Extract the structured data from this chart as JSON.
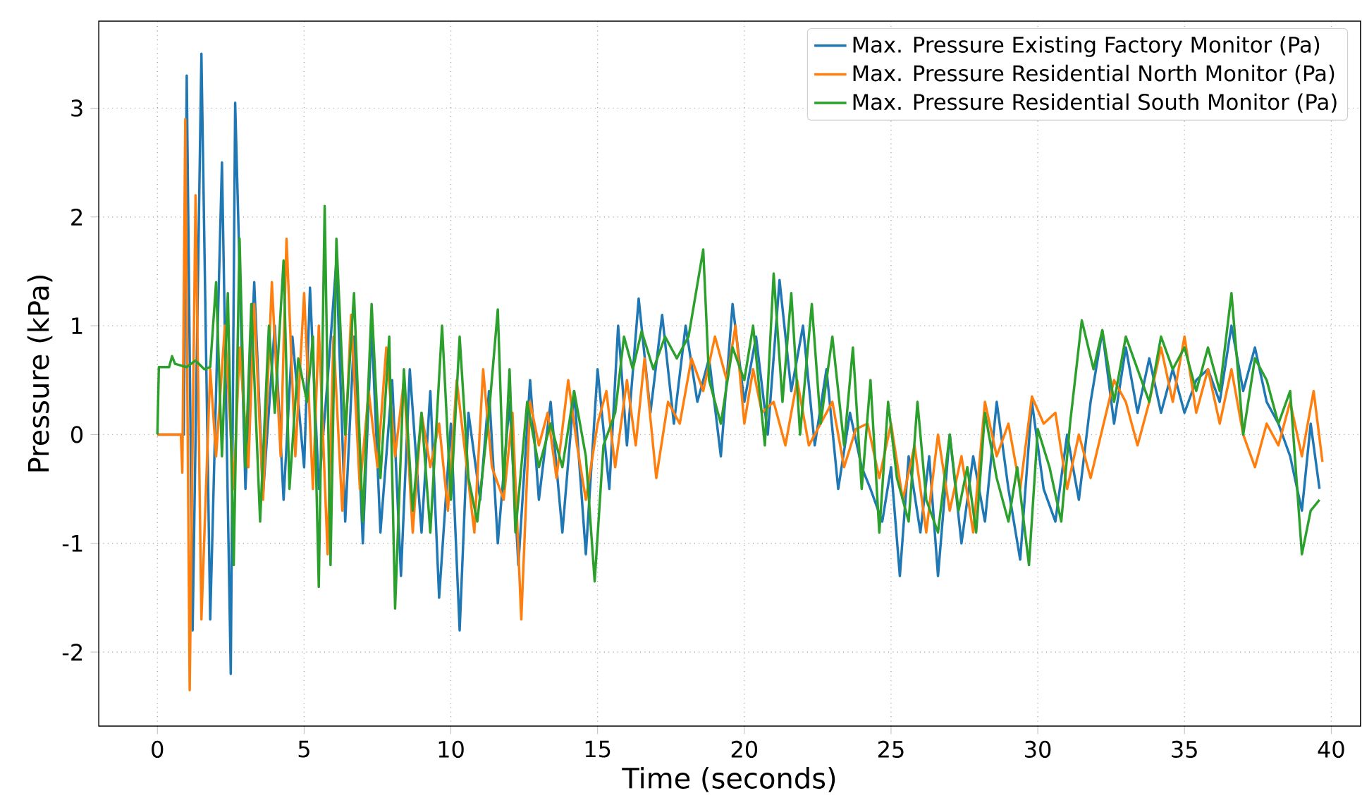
{
  "chart_data": {
    "type": "line",
    "xlabel": "Time (seconds)",
    "ylabel": "Pressure (kPa)",
    "xlim": [
      -2,
      41
    ],
    "ylim": [
      -2.68,
      3.8
    ],
    "xticks": [
      0,
      5,
      10,
      15,
      20,
      25,
      30,
      35,
      40
    ],
    "yticks": [
      -2,
      -1,
      0,
      1,
      2,
      3
    ],
    "grid": true,
    "legend": "top right",
    "series": [
      {
        "name": "Max. Pressure Existing Factory Monitor (Pa)",
        "color": "#1f77b4",
        "x": [
          0,
          0.9,
          1.0,
          1.2,
          1.5,
          1.8,
          2.2,
          2.5,
          2.65,
          3.0,
          3.3,
          3.6,
          4.0,
          4.3,
          4.6,
          5.0,
          5.2,
          5.5,
          5.8,
          6.1,
          6.4,
          6.7,
          7.0,
          7.3,
          7.6,
          8.0,
          8.3,
          8.6,
          9.0,
          9.3,
          9.6,
          10.0,
          10.3,
          10.6,
          11.0,
          11.3,
          11.6,
          12.0,
          12.3,
          12.7,
          13.0,
          13.4,
          13.8,
          14.2,
          14.6,
          15.0,
          15.4,
          15.7,
          16.0,
          16.4,
          16.8,
          17.2,
          17.6,
          18.0,
          18.4,
          18.8,
          19.2,
          19.6,
          20.0,
          20.4,
          20.8,
          21.2,
          21.6,
          22.0,
          22.4,
          22.8,
          23.2,
          23.6,
          24.0,
          24.3,
          24.7,
          25.0,
          25.3,
          25.6,
          26.0,
          26.3,
          26.6,
          27.0,
          27.4,
          27.8,
          28.2,
          28.6,
          29.0,
          29.4,
          29.8,
          30.2,
          30.6,
          31.0,
          31.4,
          31.8,
          32.2,
          32.6,
          33.0,
          33.4,
          33.8,
          34.2,
          34.6,
          35.0,
          35.4,
          35.8,
          36.2,
          36.6,
          37.0,
          37.4,
          37.8,
          38.2,
          38.6,
          39.0,
          39.3,
          39.6
        ],
        "values": [
          0,
          0,
          3.3,
          -1.8,
          3.5,
          -1.7,
          2.5,
          -2.2,
          3.05,
          -0.5,
          1.4,
          -0.55,
          1.0,
          -0.6,
          0.9,
          -0.3,
          1.35,
          -0.5,
          0.5,
          1.6,
          -0.8,
          0.9,
          -1.0,
          1.0,
          -0.9,
          0.5,
          -1.3,
          0.6,
          -0.9,
          0.4,
          -1.5,
          0.1,
          -1.8,
          0.2,
          -0.6,
          0.4,
          -1.0,
          0.3,
          -1.2,
          0.5,
          -0.6,
          0.3,
          -0.9,
          0.4,
          -1.1,
          0.6,
          -0.5,
          1.0,
          -0.1,
          1.25,
          0.2,
          1.1,
          0.1,
          1.0,
          0.3,
          0.7,
          -0.2,
          1.2,
          0.3,
          0.9,
          0.0,
          1.42,
          0.4,
          1.0,
          -0.1,
          0.6,
          -0.5,
          0.2,
          -0.3,
          -0.5,
          -0.8,
          -0.3,
          -1.3,
          -0.2,
          -0.9,
          -0.2,
          -1.3,
          0.0,
          -1.0,
          -0.2,
          -0.8,
          0.3,
          -0.5,
          -1.15,
          0.3,
          -0.5,
          -0.8,
          0.0,
          -0.6,
          0.3,
          0.95,
          0.1,
          0.8,
          0.2,
          0.7,
          0.2,
          0.6,
          0.2,
          0.5,
          0.6,
          0.3,
          1.0,
          0.4,
          0.8,
          0.3,
          0.1,
          -0.2,
          -0.7,
          0.1,
          -0.5
        ]
      },
      {
        "name": "Max. Pressure Residential North Monitor (Pa)",
        "color": "#ff7f0e",
        "x": [
          0,
          0.8,
          0.85,
          0.95,
          1.1,
          1.3,
          1.5,
          1.8,
          2.0,
          2.3,
          2.6,
          2.8,
          3.1,
          3.3,
          3.6,
          3.9,
          4.2,
          4.4,
          4.7,
          5.0,
          5.3,
          5.5,
          5.8,
          6.0,
          6.3,
          6.6,
          6.9,
          7.2,
          7.5,
          7.8,
          8.1,
          8.4,
          8.7,
          9.0,
          9.3,
          9.6,
          9.9,
          10.2,
          10.5,
          10.8,
          11.1,
          11.4,
          11.8,
          12.1,
          12.4,
          12.7,
          13.0,
          13.3,
          13.6,
          14.0,
          14.3,
          14.6,
          15.0,
          15.3,
          15.6,
          16.0,
          16.3,
          16.6,
          17.0,
          17.4,
          17.8,
          18.2,
          18.6,
          19.0,
          19.4,
          19.7,
          20.0,
          20.3,
          20.6,
          21.0,
          21.4,
          21.8,
          22.2,
          22.6,
          23.0,
          23.4,
          23.8,
          24.2,
          24.6,
          25.0,
          25.4,
          25.8,
          26.2,
          26.6,
          27.0,
          27.4,
          27.8,
          28.2,
          28.6,
          29.0,
          29.4,
          29.8,
          30.2,
          30.6,
          31.0,
          31.4,
          31.8,
          32.2,
          32.6,
          33.0,
          33.4,
          33.8,
          34.2,
          34.6,
          35.0,
          35.4,
          35.8,
          36.2,
          36.6,
          37.0,
          37.4,
          37.8,
          38.2,
          38.6,
          39.0,
          39.4,
          39.7
        ],
        "values": [
          0,
          0,
          -0.35,
          2.9,
          -2.35,
          2.2,
          -1.7,
          0.6,
          -0.2,
          1.0,
          -0.5,
          0.8,
          -0.3,
          1.2,
          -0.6,
          1.4,
          -0.2,
          1.8,
          -0.2,
          1.3,
          -0.5,
          1.0,
          -1.1,
          0.9,
          -0.7,
          1.1,
          -0.5,
          0.4,
          -0.3,
          0.8,
          -0.2,
          0.5,
          -0.9,
          0.2,
          -0.3,
          0.1,
          -0.7,
          0.5,
          -0.2,
          -0.9,
          0.6,
          -0.3,
          -0.6,
          0.2,
          -1.7,
          0.3,
          -0.1,
          0.2,
          -0.4,
          0.5,
          -0.1,
          -0.6,
          0.1,
          0.4,
          -0.3,
          0.5,
          -0.1,
          0.7,
          -0.4,
          0.3,
          0.1,
          0.7,
          0.4,
          0.9,
          0.5,
          1.0,
          0.1,
          0.6,
          0.2,
          0.3,
          -0.1,
          0.5,
          -0.1,
          0.1,
          0.3,
          -0.3,
          0.05,
          0.1,
          -0.4,
          0.1,
          -0.6,
          -0.1,
          -0.9,
          0.0,
          -0.7,
          -0.2,
          -0.9,
          0.3,
          -0.2,
          0.1,
          -0.5,
          0.35,
          0.1,
          0.2,
          -0.5,
          0.0,
          -0.4,
          0.05,
          0.5,
          0.3,
          -0.1,
          0.3,
          0.8,
          0.3,
          0.9,
          0.2,
          0.6,
          0.1,
          0.6,
          0.0,
          -0.3,
          0.1,
          -0.1,
          0.3,
          -0.2,
          0.4,
          -0.25
        ]
      },
      {
        "name": "Max. Pressure Residential South Monitor (Pa)",
        "color": "#2ca02c",
        "x": [
          0,
          0.05,
          0.4,
          0.5,
          0.6,
          1.0,
          1.3,
          1.6,
          1.8,
          2.0,
          2.2,
          2.4,
          2.6,
          2.8,
          3.0,
          3.2,
          3.5,
          3.8,
          4.0,
          4.3,
          4.5,
          4.8,
          5.1,
          5.3,
          5.5,
          5.7,
          5.9,
          6.1,
          6.4,
          6.7,
          7.0,
          7.3,
          7.6,
          7.9,
          8.1,
          8.4,
          8.7,
          9.0,
          9.3,
          9.7,
          10.0,
          10.3,
          10.6,
          10.9,
          11.3,
          11.6,
          11.8,
          12.0,
          12.2,
          12.6,
          13.0,
          13.4,
          13.8,
          14.2,
          14.6,
          14.9,
          15.2,
          15.6,
          15.9,
          16.2,
          16.5,
          16.9,
          17.3,
          17.7,
          18.1,
          18.6,
          18.8,
          19.2,
          19.6,
          20.0,
          20.3,
          20.7,
          21.0,
          21.3,
          21.6,
          21.9,
          22.3,
          22.6,
          23.0,
          23.4,
          23.7,
          24.0,
          24.3,
          24.6,
          24.9,
          25.2,
          25.6,
          25.9,
          26.2,
          26.6,
          27.0,
          27.3,
          27.6,
          27.9,
          28.2,
          28.6,
          29.0,
          29.3,
          29.7,
          30.0,
          30.4,
          30.8,
          31.1,
          31.5,
          31.9,
          32.2,
          32.6,
          33.0,
          33.4,
          33.8,
          34.2,
          34.6,
          35.0,
          35.4,
          35.8,
          36.2,
          36.6,
          37.0,
          37.4,
          37.8,
          38.2,
          38.6,
          39.0,
          39.3,
          39.6
        ],
        "values": [
          0,
          0.62,
          0.62,
          0.72,
          0.65,
          0.62,
          0.68,
          0.6,
          0.62,
          1.4,
          -0.2,
          1.3,
          -1.2,
          1.8,
          -0.3,
          1.2,
          -0.8,
          1.0,
          0.2,
          1.6,
          -0.5,
          0.7,
          0.3,
          0.9,
          -1.4,
          2.1,
          -1.2,
          1.8,
          0.0,
          1.3,
          -0.8,
          1.2,
          -0.4,
          0.9,
          -1.6,
          0.6,
          -0.7,
          0.2,
          -0.9,
          1.0,
          -0.6,
          0.9,
          -0.4,
          -0.8,
          0.2,
          1.15,
          -0.5,
          0.6,
          -0.9,
          0.3,
          -0.3,
          0.1,
          -0.3,
          0.4,
          -0.2,
          -1.35,
          -0.1,
          0.2,
          0.9,
          0.6,
          0.95,
          0.6,
          0.9,
          0.7,
          0.9,
          1.7,
          0.5,
          0.1,
          0.8,
          0.5,
          1.0,
          -0.1,
          1.48,
          0.3,
          1.3,
          0.0,
          1.2,
          0.1,
          0.9,
          -0.1,
          0.8,
          -0.5,
          0.5,
          -0.9,
          0.3,
          -0.4,
          -0.8,
          0.3,
          -0.6,
          -0.9,
          0.0,
          -0.7,
          -0.3,
          -0.9,
          0.2,
          -0.4,
          -0.8,
          -0.3,
          -1.2,
          0.05,
          -0.3,
          -0.8,
          0.1,
          1.05,
          0.6,
          0.96,
          0.3,
          0.9,
          0.6,
          0.3,
          0.9,
          0.6,
          0.8,
          0.4,
          0.8,
          0.4,
          1.3,
          0.0,
          0.7,
          0.5,
          0.1,
          0.4,
          -1.1,
          -0.7,
          -0.6
        ]
      }
    ]
  }
}
